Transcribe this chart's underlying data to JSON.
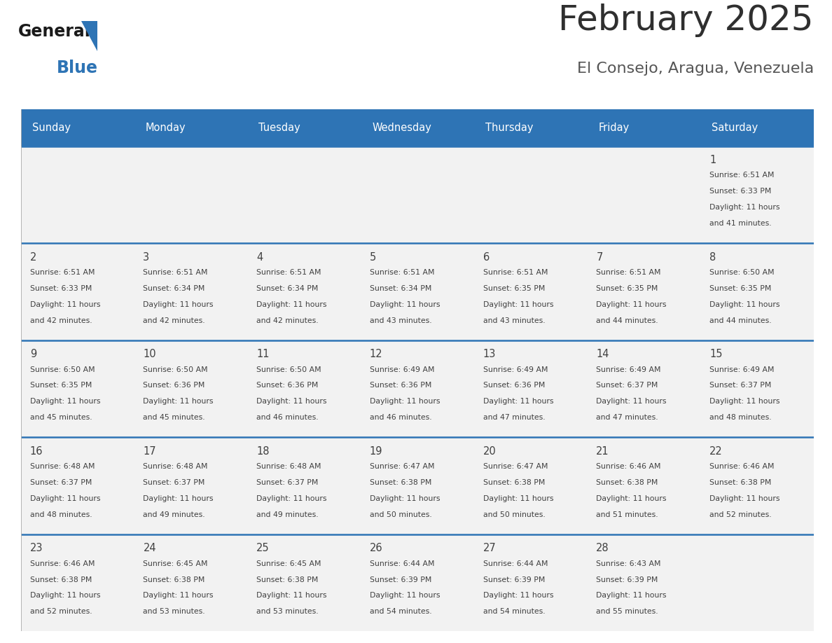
{
  "title": "February 2025",
  "subtitle": "El Consejo, Aragua, Venezuela",
  "header_bg": "#2E74B5",
  "header_text": "#FFFFFF",
  "cell_bg": "#F2F2F2",
  "divider_color": "#2E74B5",
  "text_color": "#404040",
  "days_of_week": [
    "Sunday",
    "Monday",
    "Tuesday",
    "Wednesday",
    "Thursday",
    "Friday",
    "Saturday"
  ],
  "weeks": [
    [
      {
        "day": "",
        "sunrise": "",
        "sunset": "",
        "daylight": ""
      },
      {
        "day": "",
        "sunrise": "",
        "sunset": "",
        "daylight": ""
      },
      {
        "day": "",
        "sunrise": "",
        "sunset": "",
        "daylight": ""
      },
      {
        "day": "",
        "sunrise": "",
        "sunset": "",
        "daylight": ""
      },
      {
        "day": "",
        "sunrise": "",
        "sunset": "",
        "daylight": ""
      },
      {
        "day": "",
        "sunrise": "",
        "sunset": "",
        "daylight": ""
      },
      {
        "day": "1",
        "sunrise": "Sunrise: 6:51 AM",
        "sunset": "Sunset: 6:33 PM",
        "daylight": "Daylight: 11 hours\nand 41 minutes."
      }
    ],
    [
      {
        "day": "2",
        "sunrise": "Sunrise: 6:51 AM",
        "sunset": "Sunset: 6:33 PM",
        "daylight": "Daylight: 11 hours\nand 42 minutes."
      },
      {
        "day": "3",
        "sunrise": "Sunrise: 6:51 AM",
        "sunset": "Sunset: 6:34 PM",
        "daylight": "Daylight: 11 hours\nand 42 minutes."
      },
      {
        "day": "4",
        "sunrise": "Sunrise: 6:51 AM",
        "sunset": "Sunset: 6:34 PM",
        "daylight": "Daylight: 11 hours\nand 42 minutes."
      },
      {
        "day": "5",
        "sunrise": "Sunrise: 6:51 AM",
        "sunset": "Sunset: 6:34 PM",
        "daylight": "Daylight: 11 hours\nand 43 minutes."
      },
      {
        "day": "6",
        "sunrise": "Sunrise: 6:51 AM",
        "sunset": "Sunset: 6:35 PM",
        "daylight": "Daylight: 11 hours\nand 43 minutes."
      },
      {
        "day": "7",
        "sunrise": "Sunrise: 6:51 AM",
        "sunset": "Sunset: 6:35 PM",
        "daylight": "Daylight: 11 hours\nand 44 minutes."
      },
      {
        "day": "8",
        "sunrise": "Sunrise: 6:50 AM",
        "sunset": "Sunset: 6:35 PM",
        "daylight": "Daylight: 11 hours\nand 44 minutes."
      }
    ],
    [
      {
        "day": "9",
        "sunrise": "Sunrise: 6:50 AM",
        "sunset": "Sunset: 6:35 PM",
        "daylight": "Daylight: 11 hours\nand 45 minutes."
      },
      {
        "day": "10",
        "sunrise": "Sunrise: 6:50 AM",
        "sunset": "Sunset: 6:36 PM",
        "daylight": "Daylight: 11 hours\nand 45 minutes."
      },
      {
        "day": "11",
        "sunrise": "Sunrise: 6:50 AM",
        "sunset": "Sunset: 6:36 PM",
        "daylight": "Daylight: 11 hours\nand 46 minutes."
      },
      {
        "day": "12",
        "sunrise": "Sunrise: 6:49 AM",
        "sunset": "Sunset: 6:36 PM",
        "daylight": "Daylight: 11 hours\nand 46 minutes."
      },
      {
        "day": "13",
        "sunrise": "Sunrise: 6:49 AM",
        "sunset": "Sunset: 6:36 PM",
        "daylight": "Daylight: 11 hours\nand 47 minutes."
      },
      {
        "day": "14",
        "sunrise": "Sunrise: 6:49 AM",
        "sunset": "Sunset: 6:37 PM",
        "daylight": "Daylight: 11 hours\nand 47 minutes."
      },
      {
        "day": "15",
        "sunrise": "Sunrise: 6:49 AM",
        "sunset": "Sunset: 6:37 PM",
        "daylight": "Daylight: 11 hours\nand 48 minutes."
      }
    ],
    [
      {
        "day": "16",
        "sunrise": "Sunrise: 6:48 AM",
        "sunset": "Sunset: 6:37 PM",
        "daylight": "Daylight: 11 hours\nand 48 minutes."
      },
      {
        "day": "17",
        "sunrise": "Sunrise: 6:48 AM",
        "sunset": "Sunset: 6:37 PM",
        "daylight": "Daylight: 11 hours\nand 49 minutes."
      },
      {
        "day": "18",
        "sunrise": "Sunrise: 6:48 AM",
        "sunset": "Sunset: 6:37 PM",
        "daylight": "Daylight: 11 hours\nand 49 minutes."
      },
      {
        "day": "19",
        "sunrise": "Sunrise: 6:47 AM",
        "sunset": "Sunset: 6:38 PM",
        "daylight": "Daylight: 11 hours\nand 50 minutes."
      },
      {
        "day": "20",
        "sunrise": "Sunrise: 6:47 AM",
        "sunset": "Sunset: 6:38 PM",
        "daylight": "Daylight: 11 hours\nand 50 minutes."
      },
      {
        "day": "21",
        "sunrise": "Sunrise: 6:46 AM",
        "sunset": "Sunset: 6:38 PM",
        "daylight": "Daylight: 11 hours\nand 51 minutes."
      },
      {
        "day": "22",
        "sunrise": "Sunrise: 6:46 AM",
        "sunset": "Sunset: 6:38 PM",
        "daylight": "Daylight: 11 hours\nand 52 minutes."
      }
    ],
    [
      {
        "day": "23",
        "sunrise": "Sunrise: 6:46 AM",
        "sunset": "Sunset: 6:38 PM",
        "daylight": "Daylight: 11 hours\nand 52 minutes."
      },
      {
        "day": "24",
        "sunrise": "Sunrise: 6:45 AM",
        "sunset": "Sunset: 6:38 PM",
        "daylight": "Daylight: 11 hours\nand 53 minutes."
      },
      {
        "day": "25",
        "sunrise": "Sunrise: 6:45 AM",
        "sunset": "Sunset: 6:38 PM",
        "daylight": "Daylight: 11 hours\nand 53 minutes."
      },
      {
        "day": "26",
        "sunrise": "Sunrise: 6:44 AM",
        "sunset": "Sunset: 6:39 PM",
        "daylight": "Daylight: 11 hours\nand 54 minutes."
      },
      {
        "day": "27",
        "sunrise": "Sunrise: 6:44 AM",
        "sunset": "Sunset: 6:39 PM",
        "daylight": "Daylight: 11 hours\nand 54 minutes."
      },
      {
        "day": "28",
        "sunrise": "Sunrise: 6:43 AM",
        "sunset": "Sunset: 6:39 PM",
        "daylight": "Daylight: 11 hours\nand 55 minutes."
      },
      {
        "day": "",
        "sunrise": "",
        "sunset": "",
        "daylight": ""
      }
    ]
  ],
  "logo_general_color": "#1a1a1a",
  "logo_blue_color": "#2E74B5",
  "title_color": "#2F2F2F",
  "subtitle_color": "#555555"
}
